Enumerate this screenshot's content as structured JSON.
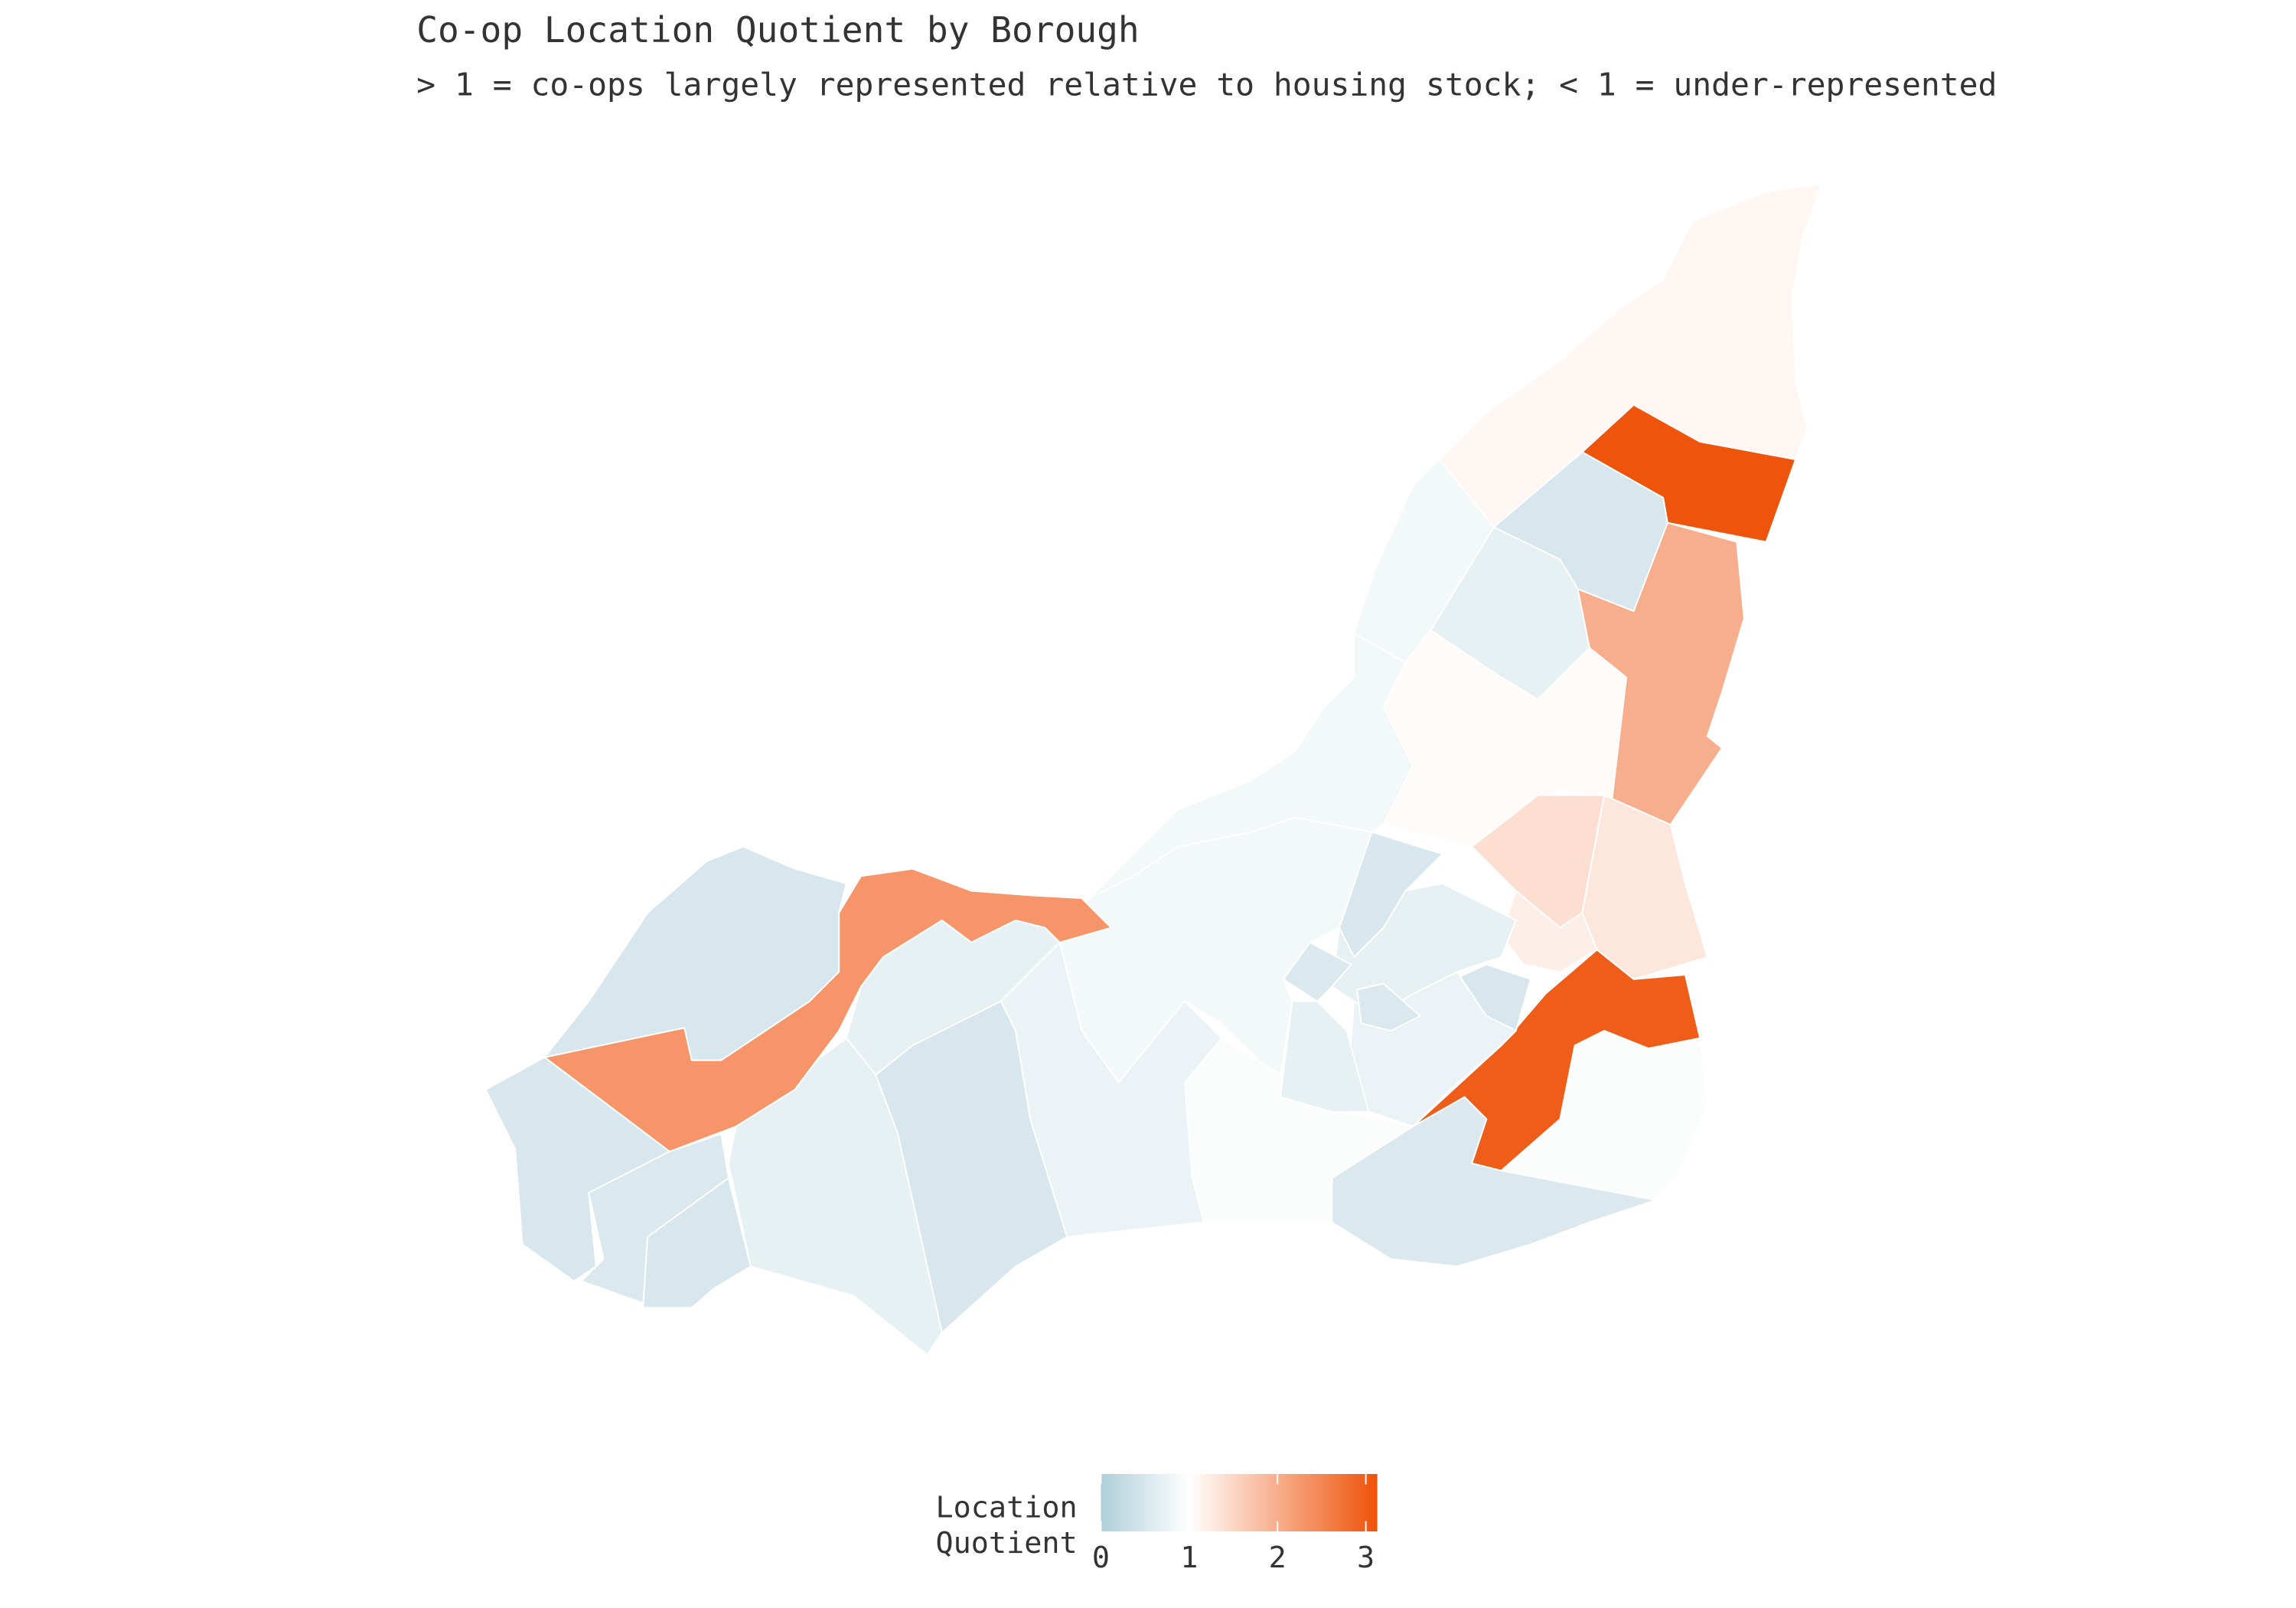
{
  "chart_data": {
    "type": "choropleth",
    "title": "Co-op Location Quotient by Borough",
    "subtitle": "> 1 = co-ops largely represented relative to housing stock; < 1 = under-represented",
    "legend_title": [
      "Location",
      "Quotient"
    ],
    "values": [
      1.1,
      3.1,
      0.5,
      0.85,
      0.7,
      2.0,
      1.05,
      1.4,
      1.3,
      1.2,
      3.0,
      0.95,
      0.55,
      0.95,
      0.5,
      0.7,
      0.55,
      0.5,
      0.75,
      0.7,
      0.55,
      0.85,
      0.85,
      0.75,
      2.3,
      0.5,
      0.7,
      0.5,
      0.7,
      0.5,
      0.55,
      0.5
    ],
    "colorbar": {
      "lim": [
        0,
        3.13
      ],
      "ticks": [
        0,
        1,
        2,
        3
      ],
      "stops": [
        0,
        1,
        3.13
      ],
      "colors": [
        "#aecfda",
        "#ffffff",
        "#ef5209"
      ]
    }
  }
}
